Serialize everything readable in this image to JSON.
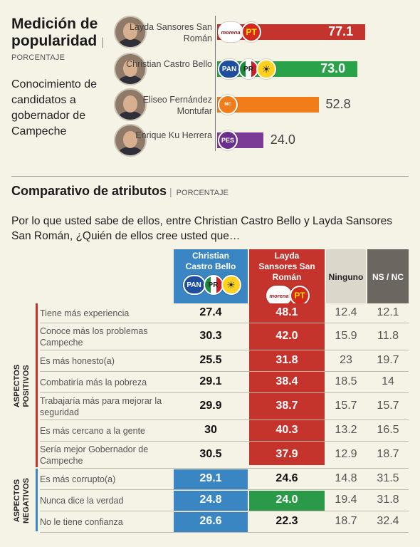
{
  "popularity": {
    "title": "Medición de popularidad",
    "separator": "|",
    "unit": "PORCENTAJE",
    "subtitle": "Conocimiento de candidatos a gobernador de Campeche"
  },
  "attributes": {
    "title": "Comparativo de atributos",
    "separator": "|",
    "unit": "PORCENTAJE",
    "question": "Por lo que usted sabe de ellos, entre Christian Castro Bello y Layda Sansores San Román, ¿Quién de ellos cree usted que…",
    "columns": [
      "Christian Castro Bello",
      "Layda Sansores San Román",
      "Ninguno",
      "NS / NC"
    ],
    "group_labels": [
      "ASPECTOS POSITIVOS",
      "ASPECTOS NEGATIVOS"
    ]
  },
  "chart_data": [
    {
      "type": "bar",
      "orientation": "horizontal",
      "title": "Medición de popularidad",
      "subtitle": "Conocimiento de candidatos a gobernador de Campeche",
      "unit": "PORCENTAJE",
      "categories": [
        "Layda Sansores San Román",
        "Christian Castro Bello",
        "Eliseo Fernández Montufar",
        "Enrique Ku Herrera"
      ],
      "values": [
        77.1,
        73.0,
        52.8,
        24.0
      ],
      "value_labels": [
        "77.1",
        "73.0",
        "52.8",
        "24.0"
      ],
      "xlim": [
        0,
        100
      ],
      "parties": [
        [
          "morena",
          "PT"
        ],
        [
          "PAN",
          "PRI",
          "PRD"
        ],
        [
          "MC"
        ],
        [
          "PES"
        ]
      ],
      "colors": [
        "#c4342c",
        "#2aa24a",
        "#f07d1a",
        "#7b3a96"
      ]
    },
    {
      "type": "table",
      "title": "Comparativo de atributos",
      "unit": "PORCENTAJE",
      "columns": [
        "Christian Castro Bello",
        "Layda Sansores San Román",
        "Ninguno",
        "NS / NC"
      ],
      "column_parties": [
        [
          "PAN",
          "PRI",
          "PRD"
        ],
        [
          "morena",
          "PT"
        ],
        [],
        []
      ],
      "groups": [
        {
          "name": "ASPECTOS POSITIVOS",
          "rows": [
            {
              "label": "Tiene más experiencia",
              "values": [
                "27.4",
                "48.1",
                "12.4",
                "12.1"
              ]
            },
            {
              "label": "Conoce más los problemas Campeche",
              "values": [
                "30.3",
                "42.0",
                "15.9",
                "11.8"
              ]
            },
            {
              "label": "Es más honesto(a)",
              "values": [
                "25.5",
                "31.8",
                "23",
                "19.7"
              ]
            },
            {
              "label": "Combatiría más la pobreza",
              "values": [
                "29.1",
                "38.4",
                "18.5",
                "14"
              ]
            },
            {
              "label": "Trabajaría más para mejorar la seguridad",
              "values": [
                "29.9",
                "38.7",
                "15.7",
                "15.7"
              ]
            },
            {
              "label": "Es más cercano a la gente",
              "values": [
                "30",
                "40.3",
                "13.2",
                "16.5"
              ]
            },
            {
              "label": "Sería mejor Gobernador de Campeche",
              "values": [
                "30.5",
                "37.9",
                "12.9",
                "18.7"
              ]
            }
          ]
        },
        {
          "name": "ASPECTOS NEGATIVOS",
          "rows": [
            {
              "label": "Es más corrupto(a)",
              "values": [
                "29.1",
                "24.6",
                "14.8",
                "31.5"
              ]
            },
            {
              "label": "Nunca dice la verdad",
              "values": [
                "24.8",
                "24.0",
                "19.4",
                "31.8"
              ]
            },
            {
              "label": "No le tiene confianza",
              "values": [
                "26.6",
                "22.3",
                "18.7",
                "32.4"
              ]
            }
          ]
        }
      ],
      "colors": {
        "christian": "#3a86c2",
        "layda": "#c4342c",
        "highlight_green": "#2a9a48",
        "ninguno": "#dcd7cb",
        "nsnc": "#6b6660"
      }
    }
  ]
}
